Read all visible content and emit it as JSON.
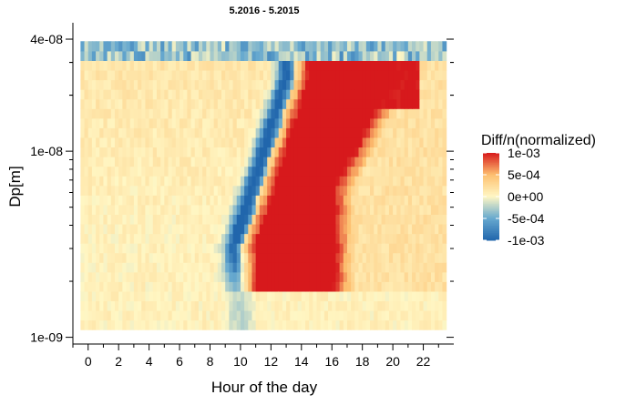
{
  "chart_data": {
    "type": "heatmap",
    "title": "5.2016 - 5.2015",
    "xlabel": "Hour of the day",
    "ylabel": "Dp[m]",
    "x_ticks": [
      0,
      2,
      4,
      6,
      8,
      10,
      12,
      14,
      16,
      18,
      20,
      22
    ],
    "x_tick_labels": [
      "0",
      "2",
      "4",
      "6",
      "8",
      "10",
      "12",
      "14",
      "16",
      "18",
      "20",
      "22"
    ],
    "xlim": [
      -1,
      24
    ],
    "y_scale": "log",
    "y_ticks": [
      1e-09,
      1e-08,
      4e-08
    ],
    "y_tick_labels": [
      "1e-09",
      "1e-08",
      "4e-08"
    ],
    "ylim": [
      9.2e-10,
      4.9e-08
    ],
    "legend": {
      "title": "Diff/n(normalized)",
      "position": "right",
      "range": [
        -0.001,
        0.001
      ],
      "tick_values": [
        0.001,
        0.0005,
        0,
        -0.0005,
        -0.001
      ],
      "tick_labels": [
        "1e-03",
        "5e-04",
        "0e+00",
        "-5e-04",
        "-1e-03"
      ],
      "colors": [
        "#2166ac",
        "#67a9cf",
        "#fff7c4",
        "#fdbf6f",
        "#d7191c"
      ]
    },
    "hours": [
      0,
      1,
      2,
      3,
      4,
      5,
      6,
      7,
      8,
      9,
      10,
      11,
      12,
      13,
      14,
      15,
      16,
      17,
      18,
      19,
      20,
      21,
      22,
      23
    ],
    "dp_range": [
      1.1e-09,
      3.9e-08
    ],
    "value_summary": "Near-zero differences overnight and morning; strong positive (red) region from about 11 to 18 h at 4e-09 to 2e-08 m and about 16 to 22 h at 2e-08 to 3e-08 m; negative (blue) band along the growth front from about 9.5 h (3e-09 m) to 13 h (2.5e-08 m) and at the largest sizes."
  }
}
